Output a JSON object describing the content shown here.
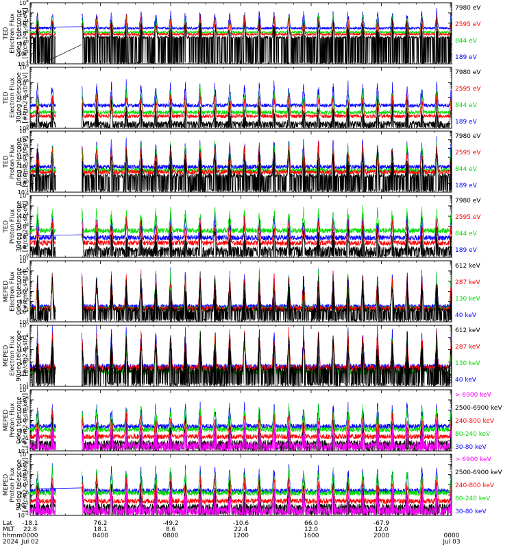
{
  "chart_data": {
    "type": "line",
    "x_axis": {
      "row_labels": [
        "Lat",
        "MLT",
        "hhmm",
        "2024"
      ],
      "ticks": [
        {
          "lat": "-18.1",
          "mlt": "22.8",
          "hhmm": "0000",
          "date": "Jul 02"
        },
        {
          "lat": "76.2",
          "mlt": "18.1",
          "hhmm": "0400",
          "date": ""
        },
        {
          "lat": "-49.2",
          "mlt": "8.6",
          "hhmm": "0800",
          "date": ""
        },
        {
          "lat": "-10.6",
          "mlt": "22.4",
          "hhmm": "1200",
          "date": ""
        },
        {
          "lat": "66.0",
          "mlt": "12.0",
          "hhmm": "1600",
          "date": ""
        },
        {
          "lat": "-67.9",
          "mlt": "12.0",
          "hhmm": "2000",
          "date": ""
        },
        {
          "lat": "",
          "mlt": "",
          "hhmm": "0000",
          "date": "Jul 03"
        }
      ],
      "hours_range": [
        0,
        24
      ]
    },
    "colors": {
      "black": "#000000",
      "red": "#ff0000",
      "green": "#00dd00",
      "blue": "#0000ff",
      "magenta": "#ff00ff"
    },
    "panels": [
      {
        "ylabel": [
          "TED",
          "Electron Flux",
          "0deg telescope",
          "[#/cm2-s-str-eV]"
        ],
        "ylim_exp": [
          -4,
          8
        ],
        "tick_labels": [
          "10^-4",
          "10^-2",
          "10^0",
          "10^2",
          "10^4",
          "10^6",
          "10^8"
        ],
        "tick_exps": [
          -4,
          -2,
          0,
          2,
          4,
          6,
          8
        ],
        "legend": [
          {
            "text": "7980 eV",
            "color": "#000000"
          },
          {
            "text": "2595 eV",
            "color": "#ff0000"
          },
          {
            "text": "844 eV",
            "color": "#00dd00"
          },
          {
            "text": "189 eV",
            "color": "#0000ff"
          }
        ],
        "base_exp": {
          "blue": 3.0,
          "green": 2.2,
          "red": 1.8,
          "black": 1.2
        },
        "spike": 3.5,
        "bridge": true
      },
      {
        "ylabel": [
          "TED",
          "Electron Flux",
          "30deg telescope",
          "[#/cm2-s-str-eV]"
        ],
        "ylim_exp": [
          0,
          8
        ],
        "tick_labels": [
          "10^0",
          "10^2",
          "10^4",
          "10^6",
          "10^8"
        ],
        "tick_exps": [
          0,
          2,
          4,
          6,
          8
        ],
        "legend": [
          {
            "text": "7980 eV",
            "color": "#000000"
          },
          {
            "text": "2595 eV",
            "color": "#ff0000"
          },
          {
            "text": "844 eV",
            "color": "#00dd00"
          },
          {
            "text": "189 eV",
            "color": "#0000ff"
          }
        ],
        "base_exp": {
          "blue": 3.0,
          "green": 2.1,
          "red": 1.6,
          "black": 0.7
        },
        "spike": 3.0,
        "bridge": false
      },
      {
        "ylabel": [
          "TED",
          "Proton Flux",
          "0deg telescope",
          "[#/cm2-s-str-eV]"
        ],
        "ylim_exp": [
          -1,
          6
        ],
        "tick_labels": [
          "10^-1",
          "10^0",
          "10^1",
          "10^2",
          "10^3",
          "10^4",
          "10^5",
          "10^6"
        ],
        "tick_exps": [
          -1,
          0,
          1,
          2,
          3,
          4,
          5,
          6
        ],
        "legend": [
          {
            "text": "7980 eV",
            "color": "#000000"
          },
          {
            "text": "2595 eV",
            "color": "#ff0000"
          },
          {
            "text": "844 eV",
            "color": "#00dd00"
          },
          {
            "text": "189 eV",
            "color": "#0000ff"
          }
        ],
        "base_exp": {
          "blue": 1.9,
          "green": 1.5,
          "red": 1.3,
          "black": 0.9
        },
        "spike": 3.2,
        "bridge": false
      },
      {
        "ylabel": [
          "TED",
          "Proton Flux",
          "30deg telescope",
          "[#/cm2-s-str-eV]"
        ],
        "ylim_exp": [
          0,
          6
        ],
        "tick_labels": [
          "10^0",
          "10^1",
          "10^2",
          "10^3",
          "10^4",
          "10^5",
          "10^6"
        ],
        "tick_exps": [
          0,
          1,
          2,
          3,
          4,
          5,
          6
        ],
        "legend": [
          {
            "text": "7980 eV",
            "color": "#000000"
          },
          {
            "text": "2595 eV",
            "color": "#ff0000"
          },
          {
            "text": "844 eV",
            "color": "#00dd00"
          },
          {
            "text": "189 eV",
            "color": "#0000ff"
          }
        ],
        "base_exp": {
          "blue": 1.9,
          "green": 2.6,
          "red": 1.4,
          "black": 0.8
        },
        "spike": 2.3,
        "bridge": true
      },
      {
        "ylabel": [
          "MEPED",
          "Electron Flux",
          "0deg telescope",
          "[#/cm2-s-str]"
        ],
        "ylim_exp": [
          1,
          7
        ],
        "tick_labels": [
          "10^1",
          "10^2",
          "10^3",
          "10^4",
          "10^5",
          "10^6",
          "10^7"
        ],
        "tick_exps": [
          1,
          2,
          3,
          4,
          5,
          6,
          7
        ],
        "legend": [
          {
            "text": "612 keV",
            "color": "#000000"
          },
          {
            "text": "287 keV",
            "color": "#ff0000"
          },
          {
            "text": "130 keV",
            "color": "#00dd00"
          },
          {
            "text": "40 keV",
            "color": "#0000ff"
          }
        ],
        "base_exp": {
          "blue": 2.5,
          "green": 2.3,
          "red": 2.3,
          "black": 2.2
        },
        "spike": 3.5,
        "bridge": false
      },
      {
        "ylabel": [
          "MEPED",
          "Electron Flux",
          "90deg telescope",
          "[#/cm2-s-str]"
        ],
        "ylim_exp": [
          1,
          6
        ],
        "tick_labels": [
          "10^1",
          "10^2",
          "10^3",
          "10^4",
          "10^5",
          "10^6"
        ],
        "tick_exps": [
          1,
          2,
          3,
          4,
          5,
          6
        ],
        "legend": [
          {
            "text": "612 keV",
            "color": "#000000"
          },
          {
            "text": "287 keV",
            "color": "#ff0000"
          },
          {
            "text": "130 keV",
            "color": "#00dd00"
          },
          {
            "text": "40 keV",
            "color": "#0000ff"
          }
        ],
        "base_exp": {
          "blue": 2.6,
          "green": 2.2,
          "red": 2.5,
          "black": 2.4
        },
        "spike": 3.2,
        "bridge": false
      },
      {
        "ylabel": [
          "MEPED",
          "Proton Flux",
          "0deg telescope",
          "[#/cm2-s-str-keV]"
        ],
        "ylim_exp": [
          -2,
          4
        ],
        "tick_labels": [
          "10^-2",
          "10^-1",
          "10^0",
          "10^1",
          "10^2",
          "10^3",
          "10^4"
        ],
        "tick_exps": [
          -2,
          -1,
          0,
          1,
          2,
          3,
          4
        ],
        "legend": [
          {
            "text": "> 6900 keV",
            "color": "#ff00ff"
          },
          {
            "text": "2500-6900 keV",
            "color": "#000000"
          },
          {
            "text": "240-800 keV",
            "color": "#ff0000"
          },
          {
            "text": "80-240 keV",
            "color": "#00dd00"
          },
          {
            "text": "30-80 keV",
            "color": "#0000ff"
          }
        ],
        "base_exp": {
          "blue": 0.4,
          "green": 0.1,
          "red": -0.6,
          "black": -1.2,
          "magenta": -1.4
        },
        "spike": 2.3,
        "bridge": false
      },
      {
        "ylabel": [
          "MEPED",
          "Proton Flux",
          "90deg telescope",
          "[#/cm2-s-str-keV]"
        ],
        "ylim_exp": [
          -2,
          4
        ],
        "tick_labels": [
          "10^-2",
          "10^-1",
          "10^0",
          "10^1",
          "10^2",
          "10^3",
          "10^4"
        ],
        "tick_exps": [
          -2,
          -1,
          0,
          1,
          2,
          3,
          4
        ],
        "legend": [
          {
            "text": "> 6900 keV",
            "color": "#ff00ff"
          },
          {
            "text": "2500-6900 keV",
            "color": "#000000"
          },
          {
            "text": "240-800 keV",
            "color": "#ff0000"
          },
          {
            "text": "80-240 keV",
            "color": "#00dd00"
          },
          {
            "text": "30-80 keV",
            "color": "#0000ff"
          }
        ],
        "base_exp": {
          "blue": 0.4,
          "green": 0.2,
          "red": -0.6,
          "black": -1.1,
          "magenta": -1.4
        },
        "spike": 2.4,
        "bridge": true
      }
    ],
    "data_gap_hours": [
      1.45,
      2.95
    ]
  }
}
